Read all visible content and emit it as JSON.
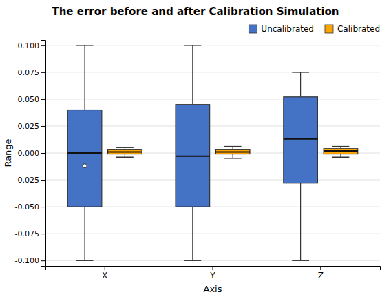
{
  "chart_data": {
    "type": "box",
    "title": "The error before and after Calibration Simulation",
    "xlabel": "Axis",
    "ylabel": "Range",
    "categories": [
      "X",
      "Y",
      "Z"
    ],
    "series": [
      {
        "name": "Uncalibrated",
        "color": "#4472C4",
        "values": [
          {
            "whisker_low": -0.1,
            "q1": -0.05,
            "median": 0,
            "q3": 0.04,
            "whisker_high": 0.1,
            "outliers": [
              -0.012
            ]
          },
          {
            "whisker_low": -0.1,
            "q1": -0.05,
            "median": -0.003,
            "q3": 0.045,
            "whisker_high": 0.1,
            "outliers": []
          },
          {
            "whisker_low": -0.1,
            "q1": -0.028,
            "median": 0.013,
            "q3": 0.052,
            "whisker_high": 0.075,
            "outliers": []
          }
        ]
      },
      {
        "name": "Calibrated",
        "color": "#FFA500",
        "values": [
          {
            "whisker_low": -0.004,
            "q1": -0.001,
            "median": 0.001,
            "q3": 0.003,
            "whisker_high": 0.005,
            "outliers": []
          },
          {
            "whisker_low": -0.005,
            "q1": -0.001,
            "median": 0.001,
            "q3": 0.003,
            "whisker_high": 0.006,
            "outliers": []
          },
          {
            "whisker_low": -0.004,
            "q1": -0.001,
            "median": 0.002,
            "q3": 0.004,
            "whisker_high": 0.006,
            "outliers": []
          }
        ]
      }
    ],
    "ylim": [
      -0.105,
      0.105
    ],
    "yticks": [
      {
        "value": -0.1,
        "label": "-0.100"
      },
      {
        "value": -0.075,
        "label": "-0.075"
      },
      {
        "value": -0.05,
        "label": "-0.050"
      },
      {
        "value": -0.025,
        "label": "-0.025"
      },
      {
        "value": 0,
        "label": "0.000"
      },
      {
        "value": 0.025,
        "label": "0.025"
      },
      {
        "value": 0.05,
        "label": "0.050"
      },
      {
        "value": 0.075,
        "label": "0.075"
      },
      {
        "value": 0.1,
        "label": "0.100"
      }
    ],
    "grid": true,
    "legend": "upper right"
  }
}
